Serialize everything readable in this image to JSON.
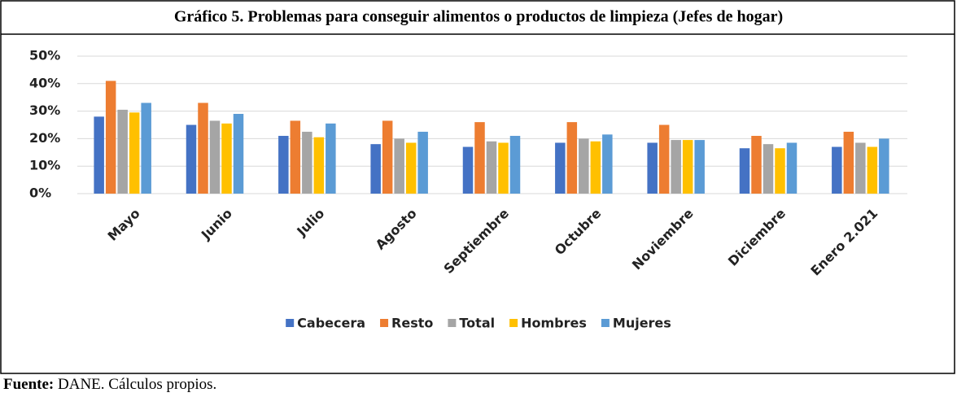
{
  "chart_data": {
    "type": "bar",
    "title": "Gráfico 5. Problemas para conseguir alimentos o productos de limpieza (Jefes de hogar)",
    "categories": [
      "Mayo",
      "Junio",
      "Julio",
      "Agosto",
      "Septiembre",
      "Octubre",
      "Noviembre",
      "Diciembre",
      "Enero 2.021"
    ],
    "series": [
      {
        "name": "Cabecera",
        "color": "#4472c4",
        "values": [
          28,
          25,
          21,
          18,
          17,
          18.5,
          18.5,
          16.5,
          17
        ]
      },
      {
        "name": "Resto",
        "color": "#ed7d31",
        "values": [
          41,
          33,
          26.5,
          26.5,
          26,
          26,
          25,
          21,
          22.5
        ]
      },
      {
        "name": "Total",
        "color": "#a5a5a5",
        "values": [
          30.5,
          26.5,
          22.5,
          20,
          19,
          20,
          19.5,
          18,
          18.5
        ]
      },
      {
        "name": "Hombres",
        "color": "#ffc000",
        "values": [
          29.5,
          25.5,
          20.5,
          18.5,
          18.5,
          19,
          19.5,
          16.5,
          17
        ]
      },
      {
        "name": "Mujeres",
        "color": "#5b9bd5",
        "values": [
          33,
          29,
          25.5,
          22.5,
          21,
          21.5,
          19.5,
          18.5,
          20
        ]
      }
    ],
    "ylim": [
      0,
      50
    ],
    "yticks": [
      {
        "value": 0,
        "label": "0%"
      },
      {
        "value": 10,
        "label": "10%"
      },
      {
        "value": 20,
        "label": "20%"
      },
      {
        "value": 30,
        "label": "30%"
      },
      {
        "value": 40,
        "label": "40%"
      },
      {
        "value": 50,
        "label": "50%"
      }
    ],
    "grid": true,
    "legend": "bottom"
  },
  "footer": {
    "label": "Fuente:",
    "text": "DANE. Cálculos propios."
  }
}
